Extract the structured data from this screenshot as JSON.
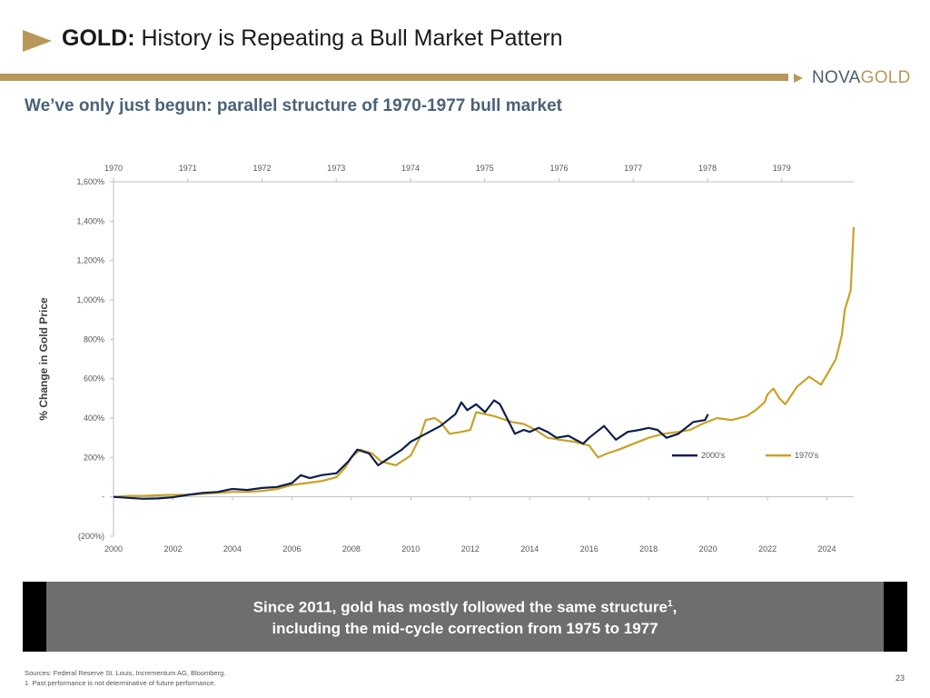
{
  "header": {
    "title_bold": "GOLD:",
    "title_rest": " History is Repeating a Bull Market Pattern",
    "logo_part1": "NOVA",
    "logo_part2": "GOLD",
    "subtitle": "We’ve only just begun: parallel structure of 1970-1977 bull market",
    "accent_color": "#b8985a"
  },
  "chart_data": {
    "type": "line",
    "title": "",
    "ylabel": "% Change in Gold Price",
    "xlabel": "",
    "x_bottom_ticks": [
      "2000",
      "2002",
      "2004",
      "2006",
      "2008",
      "2010",
      "2012",
      "2014",
      "2016",
      "2018",
      "2020",
      "2022",
      "2024"
    ],
    "x_top_ticks": [
      "1970",
      "1971",
      "1972",
      "1973",
      "1974",
      "1975",
      "1976",
      "1977",
      "1978",
      "1979"
    ],
    "y_ticks": [
      {
        "value": -200,
        "label": "(200%)"
      },
      {
        "value": 0,
        "label": "-"
      },
      {
        "value": 200,
        "label": "200%"
      },
      {
        "value": 400,
        "label": "400%"
      },
      {
        "value": 600,
        "label": "600%"
      },
      {
        "value": 800,
        "label": "800%"
      },
      {
        "value": 1000,
        "label": "1,000%"
      },
      {
        "value": 1200,
        "label": "1,200%"
      },
      {
        "value": 1400,
        "label": "1,400%"
      },
      {
        "value": 1600,
        "label": "1,600%"
      }
    ],
    "xlim": [
      2000,
      2024.9
    ],
    "ylim": [
      -200,
      1600
    ],
    "legend_position": "inside lower-right",
    "series": [
      {
        "name": "2000's",
        "color": "#0d1f4e",
        "points": [
          [
            2000.0,
            0
          ],
          [
            2000.5,
            -5
          ],
          [
            2001.0,
            -10
          ],
          [
            2001.5,
            -8
          ],
          [
            2002.0,
            -2
          ],
          [
            2002.5,
            10
          ],
          [
            2003.0,
            20
          ],
          [
            2003.5,
            25
          ],
          [
            2004.0,
            40
          ],
          [
            2004.5,
            35
          ],
          [
            2005.0,
            45
          ],
          [
            2005.5,
            50
          ],
          [
            2006.0,
            70
          ],
          [
            2006.3,
            110
          ],
          [
            2006.6,
            95
          ],
          [
            2007.0,
            110
          ],
          [
            2007.5,
            120
          ],
          [
            2007.9,
            180
          ],
          [
            2008.2,
            240
          ],
          [
            2008.6,
            220
          ],
          [
            2008.9,
            160
          ],
          [
            2009.3,
            200
          ],
          [
            2009.7,
            240
          ],
          [
            2010.0,
            280
          ],
          [
            2010.5,
            320
          ],
          [
            2011.0,
            360
          ],
          [
            2011.5,
            420
          ],
          [
            2011.7,
            480
          ],
          [
            2011.9,
            440
          ],
          [
            2012.2,
            470
          ],
          [
            2012.5,
            430
          ],
          [
            2012.8,
            490
          ],
          [
            2013.0,
            470
          ],
          [
            2013.3,
            380
          ],
          [
            2013.5,
            320
          ],
          [
            2013.8,
            340
          ],
          [
            2014.0,
            330
          ],
          [
            2014.3,
            350
          ],
          [
            2014.6,
            330
          ],
          [
            2014.9,
            300
          ],
          [
            2015.3,
            310
          ],
          [
            2015.8,
            270
          ],
          [
            2016.0,
            300
          ],
          [
            2016.5,
            360
          ],
          [
            2016.9,
            290
          ],
          [
            2017.3,
            330
          ],
          [
            2017.7,
            340
          ],
          [
            2018.0,
            350
          ],
          [
            2018.3,
            340
          ],
          [
            2018.6,
            300
          ],
          [
            2019.0,
            320
          ],
          [
            2019.5,
            380
          ],
          [
            2019.9,
            390
          ],
          [
            2020.0,
            420
          ]
        ]
      },
      {
        "name": "1970's",
        "color": "#c9a227",
        "points": [
          [
            2000.0,
            0
          ],
          [
            2000.5,
            5
          ],
          [
            2001.0,
            5
          ],
          [
            2001.5,
            8
          ],
          [
            2002.0,
            10
          ],
          [
            2002.5,
            10
          ],
          [
            2003.0,
            15
          ],
          [
            2003.5,
            20
          ],
          [
            2004.0,
            25
          ],
          [
            2004.5,
            25
          ],
          [
            2005.0,
            30
          ],
          [
            2005.5,
            40
          ],
          [
            2006.0,
            60
          ],
          [
            2006.5,
            70
          ],
          [
            2007.0,
            80
          ],
          [
            2007.5,
            100
          ],
          [
            2007.8,
            150
          ],
          [
            2008.0,
            200
          ],
          [
            2008.3,
            240
          ],
          [
            2008.7,
            220
          ],
          [
            2009.0,
            180
          ],
          [
            2009.5,
            160
          ],
          [
            2010.0,
            210
          ],
          [
            2010.3,
            300
          ],
          [
            2010.5,
            390
          ],
          [
            2010.8,
            400
          ],
          [
            2011.0,
            380
          ],
          [
            2011.3,
            320
          ],
          [
            2011.7,
            330
          ],
          [
            2012.0,
            340
          ],
          [
            2012.2,
            430
          ],
          [
            2012.5,
            420
          ],
          [
            2012.8,
            410
          ],
          [
            2013.0,
            400
          ],
          [
            2013.4,
            380
          ],
          [
            2013.8,
            370
          ],
          [
            2014.2,
            340
          ],
          [
            2014.6,
            300
          ],
          [
            2015.0,
            290
          ],
          [
            2015.5,
            280
          ],
          [
            2016.0,
            260
          ],
          [
            2016.3,
            200
          ],
          [
            2016.6,
            220
          ],
          [
            2017.0,
            240
          ],
          [
            2017.5,
            270
          ],
          [
            2018.0,
            300
          ],
          [
            2018.5,
            320
          ],
          [
            2019.0,
            330
          ],
          [
            2019.4,
            340
          ],
          [
            2019.8,
            370
          ],
          [
            2020.3,
            400
          ],
          [
            2020.8,
            390
          ],
          [
            2021.3,
            410
          ],
          [
            2021.6,
            440
          ],
          [
            2021.9,
            480
          ],
          [
            2022.0,
            520
          ],
          [
            2022.2,
            550
          ],
          [
            2022.4,
            500
          ],
          [
            2022.6,
            470
          ],
          [
            2023.0,
            560
          ],
          [
            2023.4,
            610
          ],
          [
            2023.8,
            570
          ],
          [
            2024.0,
            620
          ],
          [
            2024.3,
            700
          ],
          [
            2024.5,
            820
          ],
          [
            2024.6,
            950
          ],
          [
            2024.7,
            1000
          ],
          [
            2024.8,
            1050
          ],
          [
            2024.9,
            1370
          ]
        ]
      }
    ]
  },
  "callout": {
    "line1": "Since 2011, gold has mostly followed the same structure",
    "line1_sup": "1",
    "line1_end": ",",
    "line2": "including the mid-cycle correction from 1975 to 1977"
  },
  "footer": {
    "sources": "Sources: Federal Reserve St. Louis, Incrementum AG, Bloomberg.",
    "note": "1. Past performance is not determinative of future performance.",
    "page_number": "23"
  }
}
